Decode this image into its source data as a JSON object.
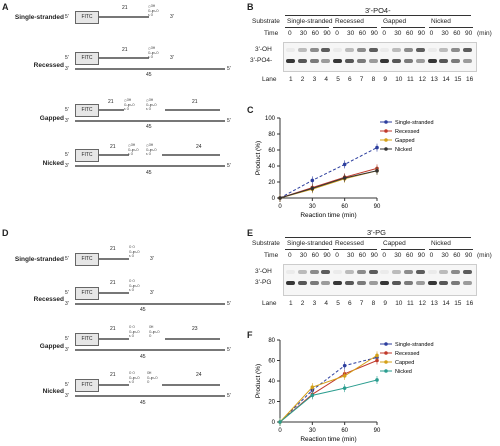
{
  "panels": {
    "a": "A",
    "b": "B",
    "c": "C",
    "d": "D",
    "e": "E",
    "f": "F"
  },
  "substrates": [
    "Single-stranded",
    "Recessed",
    "Gapped",
    "Nicked"
  ],
  "primes": {
    "five": "5'",
    "three": "3'"
  },
  "fitc_label": "FITC",
  "lengths": {
    "n21": "21",
    "n23": "23",
    "n24": "24",
    "n45": "45"
  },
  "mods_top": {
    "po": "3'-PO₄",
    "pg": "3'-PG"
  },
  "gel_b": {
    "title": "3'-PO4-",
    "substrate_label": "Substrate",
    "time_label": "Time",
    "groups": [
      "Single-stranded",
      "Recessed",
      "Gapped",
      "Nicked"
    ],
    "times": [
      "0",
      "30",
      "60",
      "90"
    ],
    "unit": "(min)",
    "band_labels": [
      "3'-OH",
      "3'-PO4-"
    ],
    "lane_label": "Lane",
    "lanes": [
      "1",
      "2",
      "3",
      "4",
      "5",
      "6",
      "7",
      "8",
      "9",
      "10",
      "11",
      "12",
      "13",
      "14",
      "15",
      "16"
    ]
  },
  "gel_e": {
    "title": "3'-PG",
    "substrate_label": "Substrate",
    "time_label": "Time",
    "groups": [
      "Single-stranded",
      "Recessed",
      "Capped",
      "Nicked"
    ],
    "times": [
      "0",
      "30",
      "60",
      "90"
    ],
    "unit": "(min)",
    "band_labels": [
      "3'-OH",
      "3'-PG"
    ],
    "lane_label": "Lane",
    "lanes": [
      "1",
      "2",
      "3",
      "4",
      "5",
      "6",
      "7",
      "8",
      "9",
      "10",
      "11",
      "12",
      "13",
      "14",
      "15",
      "16"
    ]
  },
  "chart_data": [
    {
      "type": "line",
      "panel": "C",
      "xlabel": "Reaction time (min)",
      "ylabel": "Product (%)",
      "x": [
        0,
        30,
        60,
        90
      ],
      "xlim": [
        0,
        90
      ],
      "ylim": [
        0,
        100
      ],
      "yticks": [
        0,
        20,
        40,
        60,
        80,
        100
      ],
      "legend_position": "top-right",
      "series": [
        {
          "name": "Single-stranded",
          "values": [
            0,
            22,
            42,
            63
          ],
          "color": "#2c3e9e"
        },
        {
          "name": "Recessed",
          "values": [
            0,
            13,
            26,
            37
          ],
          "color": "#c0392b"
        },
        {
          "name": "Gapped",
          "values": [
            0,
            11,
            24,
            34
          ],
          "color": "#d4a017"
        },
        {
          "name": "Nicked",
          "values": [
            0,
            12,
            25,
            34
          ],
          "color": "#333333"
        }
      ]
    },
    {
      "type": "line",
      "panel": "F",
      "xlabel": "Reaction time (min)",
      "ylabel": "Product (%)",
      "x": [
        0,
        30,
        60,
        90
      ],
      "xlim": [
        0,
        90
      ],
      "ylim": [
        0,
        80
      ],
      "yticks": [
        0,
        20,
        40,
        60,
        80
      ],
      "legend_position": "top-right",
      "series": [
        {
          "name": "Single-stranded",
          "values": [
            0,
            31,
            55,
            63
          ],
          "color": "#2c3e9e"
        },
        {
          "name": "Recessed",
          "values": [
            0,
            27,
            47,
            60
          ],
          "color": "#c0392b"
        },
        {
          "name": "Capped",
          "values": [
            0,
            34,
            45,
            65
          ],
          "color": "#d4a017"
        },
        {
          "name": "Nicked",
          "values": [
            0,
            26,
            33,
            41
          ],
          "color": "#2a9d8f"
        }
      ]
    }
  ]
}
